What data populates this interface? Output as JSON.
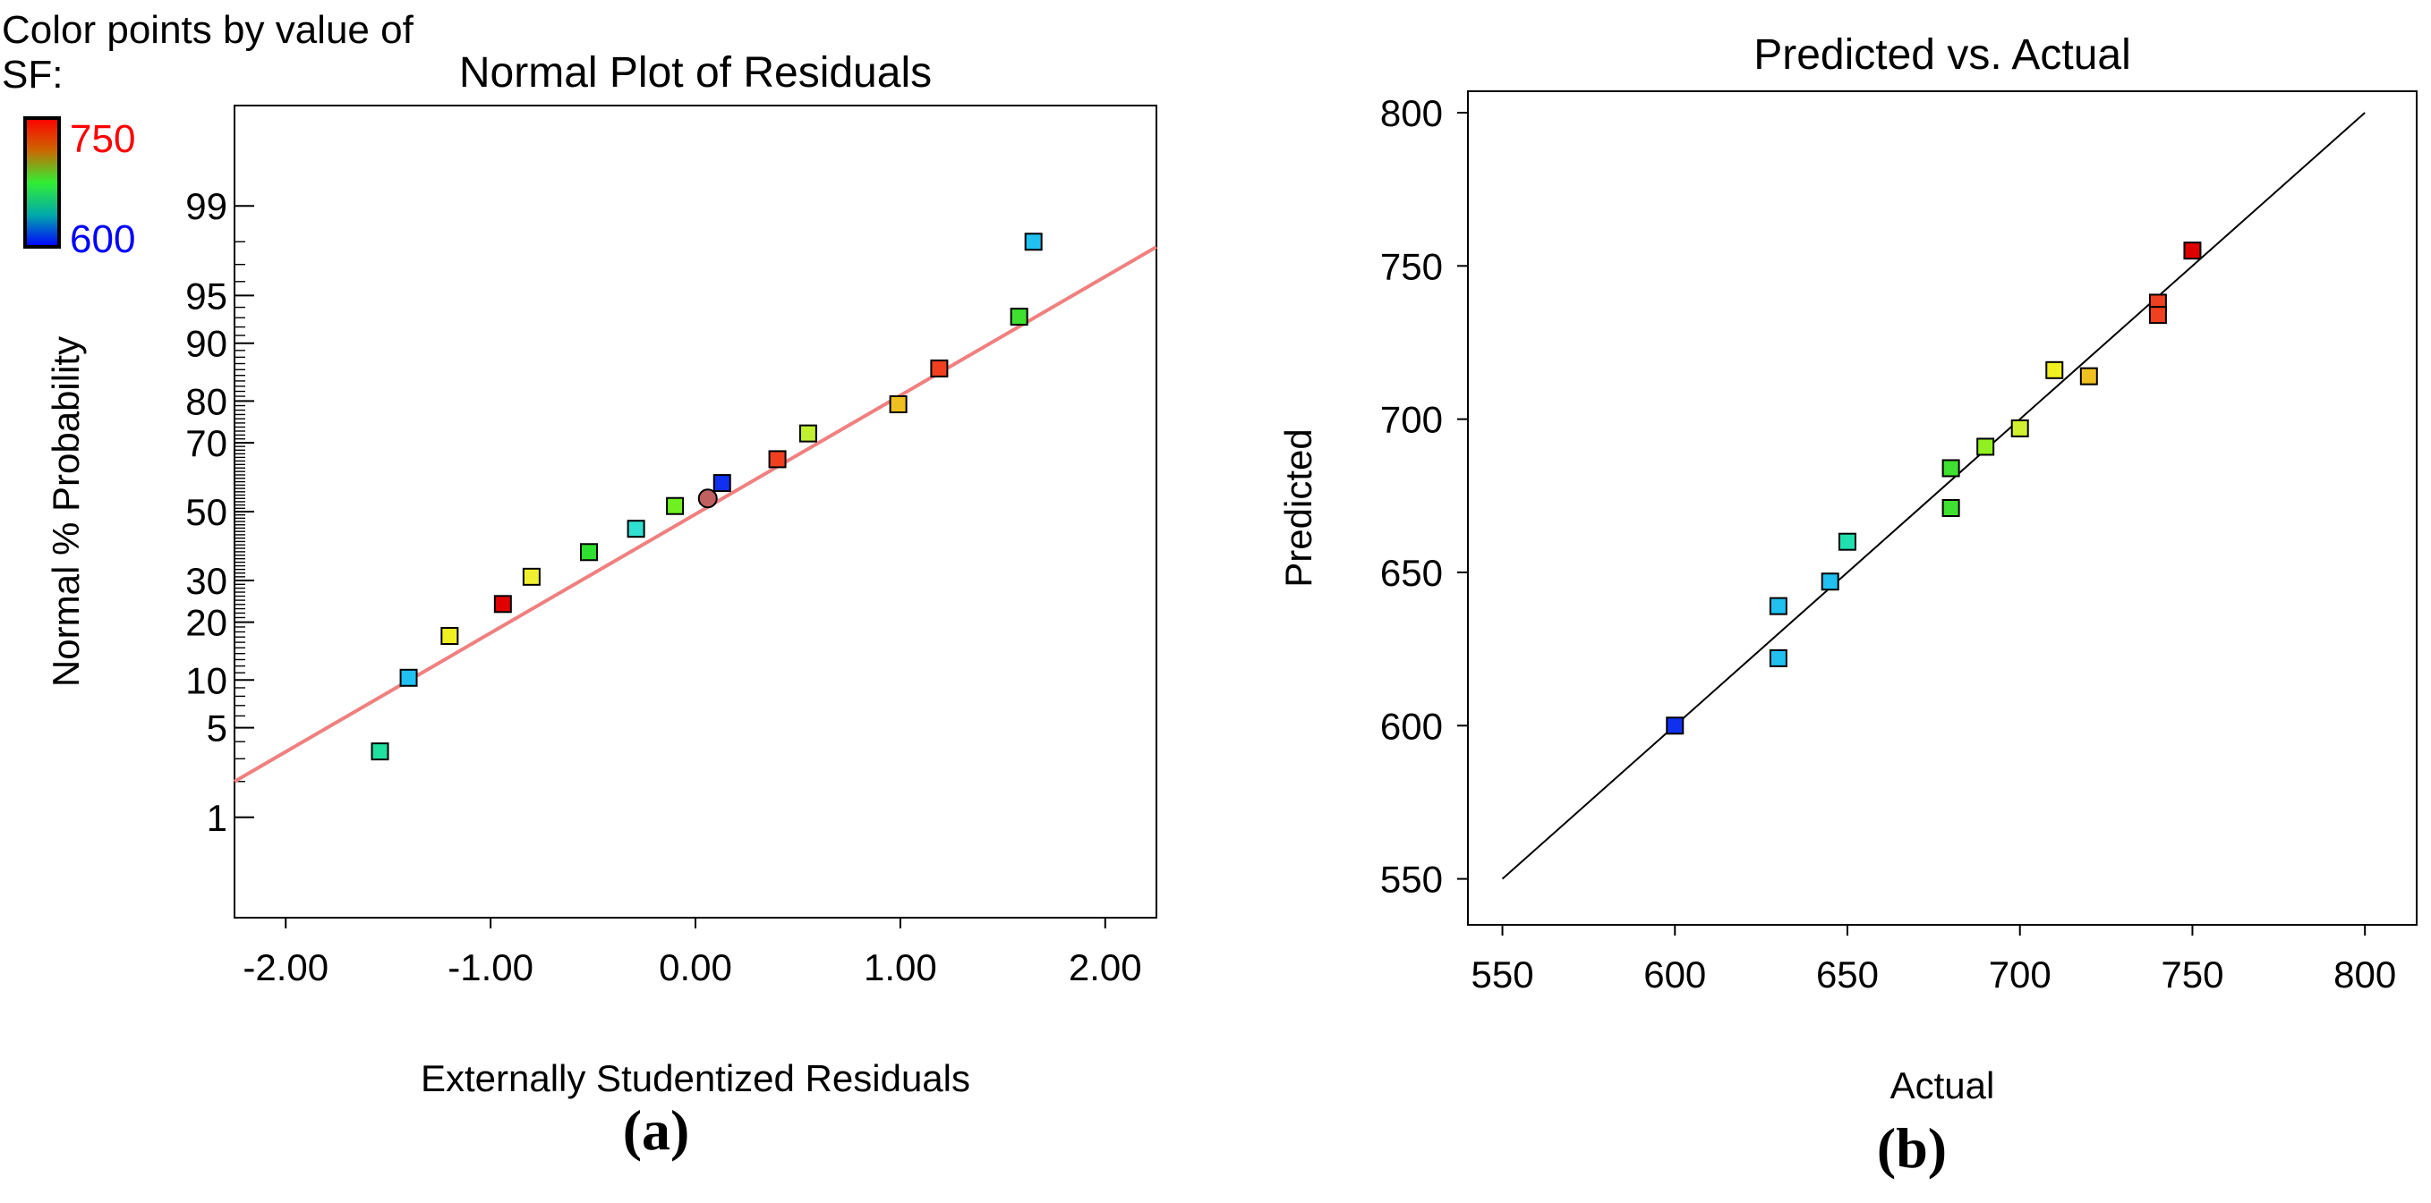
{
  "legend": {
    "caption_line1": "Color points by value of",
    "caption_line2": "SF:",
    "max_label": "750",
    "min_label": "600",
    "max_value": 750,
    "min_value": 600,
    "max_color": "#ff0000",
    "min_color": "#0000ff"
  },
  "panel_labels": {
    "a": "(a)",
    "b": "(b)"
  },
  "chart_data": [
    {
      "type": "scatter",
      "id": "a",
      "title": "Normal Plot of Residuals",
      "xlabel": "Externally Studentized Residuals",
      "ylabel": "Normal % Probability",
      "y_scale": "normal-probability",
      "xlim": [
        -2.25,
        2.25
      ],
      "ylim": [
        0.1,
        99.9
      ],
      "xticks": [
        -2,
        -1,
        0,
        1,
        2
      ],
      "xtick_labels": [
        "-2.00",
        "-1.00",
        "0.00",
        "1.00",
        "2.00"
      ],
      "yticks": [
        1,
        5,
        10,
        20,
        30,
        50,
        70,
        80,
        90,
        95,
        99
      ],
      "ytick_labels": [
        "1",
        "5",
        "10",
        "20",
        "30",
        "50",
        "70",
        "80",
        "90",
        "95",
        "99"
      ],
      "fit_line": {
        "color": "#f08080",
        "x": [
          -2.25,
          2.25
        ],
        "y": [
          2.0,
          97.8
        ]
      },
      "points": [
        {
          "x": -1.54,
          "y": 3.4,
          "color": "#20e0a0"
        },
        {
          "x": -1.4,
          "y": 10.3,
          "color": "#20c0f0"
        },
        {
          "x": -1.2,
          "y": 17.2,
          "color": "#f0f020"
        },
        {
          "x": -0.94,
          "y": 24.1,
          "color": "#e00000"
        },
        {
          "x": -0.8,
          "y": 31.0,
          "color": "#f0f030"
        },
        {
          "x": -0.52,
          "y": 37.9,
          "color": "#30e030"
        },
        {
          "x": -0.29,
          "y": 44.8,
          "color": "#30e0d0"
        },
        {
          "x": -0.1,
          "y": 51.7,
          "color": "#70f020"
        },
        {
          "x": 0.06,
          "y": 54.0,
          "color": "#c06060",
          "marker": "circle"
        },
        {
          "x": 0.13,
          "y": 58.6,
          "color": "#1030f0"
        },
        {
          "x": 0.4,
          "y": 65.5,
          "color": "#f04020"
        },
        {
          "x": 0.55,
          "y": 72.4,
          "color": "#c0f030"
        },
        {
          "x": 0.99,
          "y": 79.3,
          "color": "#f0c020"
        },
        {
          "x": 1.19,
          "y": 86.2,
          "color": "#f04020"
        },
        {
          "x": 1.58,
          "y": 93.1,
          "color": "#40e030"
        },
        {
          "x": 1.65,
          "y": 98.0,
          "color": "#20c0f0"
        }
      ]
    },
    {
      "type": "scatter",
      "id": "b",
      "title": "Predicted vs. Actual",
      "xlabel": "Actual",
      "ylabel": "Predicted",
      "xlim": [
        540,
        815
      ],
      "ylim": [
        535,
        807
      ],
      "xticks": [
        550,
        600,
        650,
        700,
        750,
        800
      ],
      "xtick_labels": [
        "550",
        "600",
        "650",
        "700",
        "750",
        "800"
      ],
      "yticks": [
        550,
        600,
        650,
        700,
        750,
        800
      ],
      "ytick_labels": [
        "550",
        "600",
        "650",
        "700",
        "750",
        "800"
      ],
      "reference_line": {
        "x": [
          550,
          800
        ],
        "y": [
          550,
          800
        ]
      },
      "points": [
        {
          "x": 600,
          "y": 600,
          "color": "#1030f0"
        },
        {
          "x": 630,
          "y": 639,
          "color": "#20c0f0"
        },
        {
          "x": 630,
          "y": 622,
          "color": "#20c0f0"
        },
        {
          "x": 645,
          "y": 647,
          "color": "#20c0f0"
        },
        {
          "x": 650,
          "y": 660,
          "color": "#20e0b0"
        },
        {
          "x": 680,
          "y": 684,
          "color": "#40e030"
        },
        {
          "x": 680,
          "y": 671,
          "color": "#40e030"
        },
        {
          "x": 690,
          "y": 691,
          "color": "#90f020"
        },
        {
          "x": 700,
          "y": 697,
          "color": "#d0f030"
        },
        {
          "x": 710,
          "y": 716,
          "color": "#f0f020"
        },
        {
          "x": 720,
          "y": 714,
          "color": "#f0c020"
        },
        {
          "x": 740,
          "y": 738,
          "color": "#f04020"
        },
        {
          "x": 740,
          "y": 734,
          "color": "#f04020"
        },
        {
          "x": 750,
          "y": 755,
          "color": "#e00000"
        }
      ]
    }
  ]
}
